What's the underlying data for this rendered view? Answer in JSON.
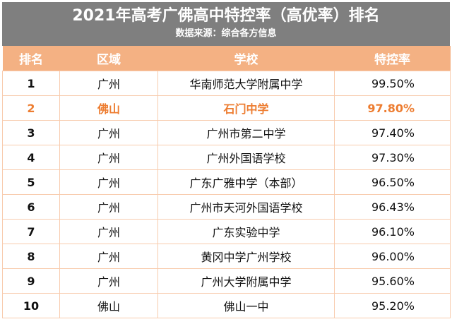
{
  "title": "2021年高考广佛高中特控率（高优率）排名",
  "subtitle": "数据来源：综合各方信息",
  "colors": {
    "title_bg": "#7f7f7f",
    "header_bg": "#f4b183",
    "highlight": "#ed7d31"
  },
  "headers": [
    "排名",
    "区域",
    "学校",
    "特控率"
  ],
  "rows": [
    [
      "1",
      "广州",
      "华南师范大学附属中学",
      "99.50%"
    ],
    [
      "2",
      "佛山",
      "石门中学",
      "97.80%"
    ],
    [
      "3",
      "广州",
      "广州市第二中学",
      "97.40%"
    ],
    [
      "4",
      "广州",
      "广州外国语学校",
      "97.30%"
    ],
    [
      "5",
      "广州",
      "广东广雅中学（本部）",
      "96.50%"
    ],
    [
      "6",
      "广州",
      "广州市天河外国语学校",
      "96.43%"
    ],
    [
      "7",
      "广州",
      "广东实验中学",
      "96.10%"
    ],
    [
      "8",
      "广州",
      "黄冈中学广州学校",
      "96.00%"
    ],
    [
      "9",
      "广州",
      "广州大学附属中学",
      "95.60%"
    ],
    [
      "10",
      "佛山",
      "佛山一中",
      "95.20%"
    ]
  ],
  "highlighted_row": 1
}
